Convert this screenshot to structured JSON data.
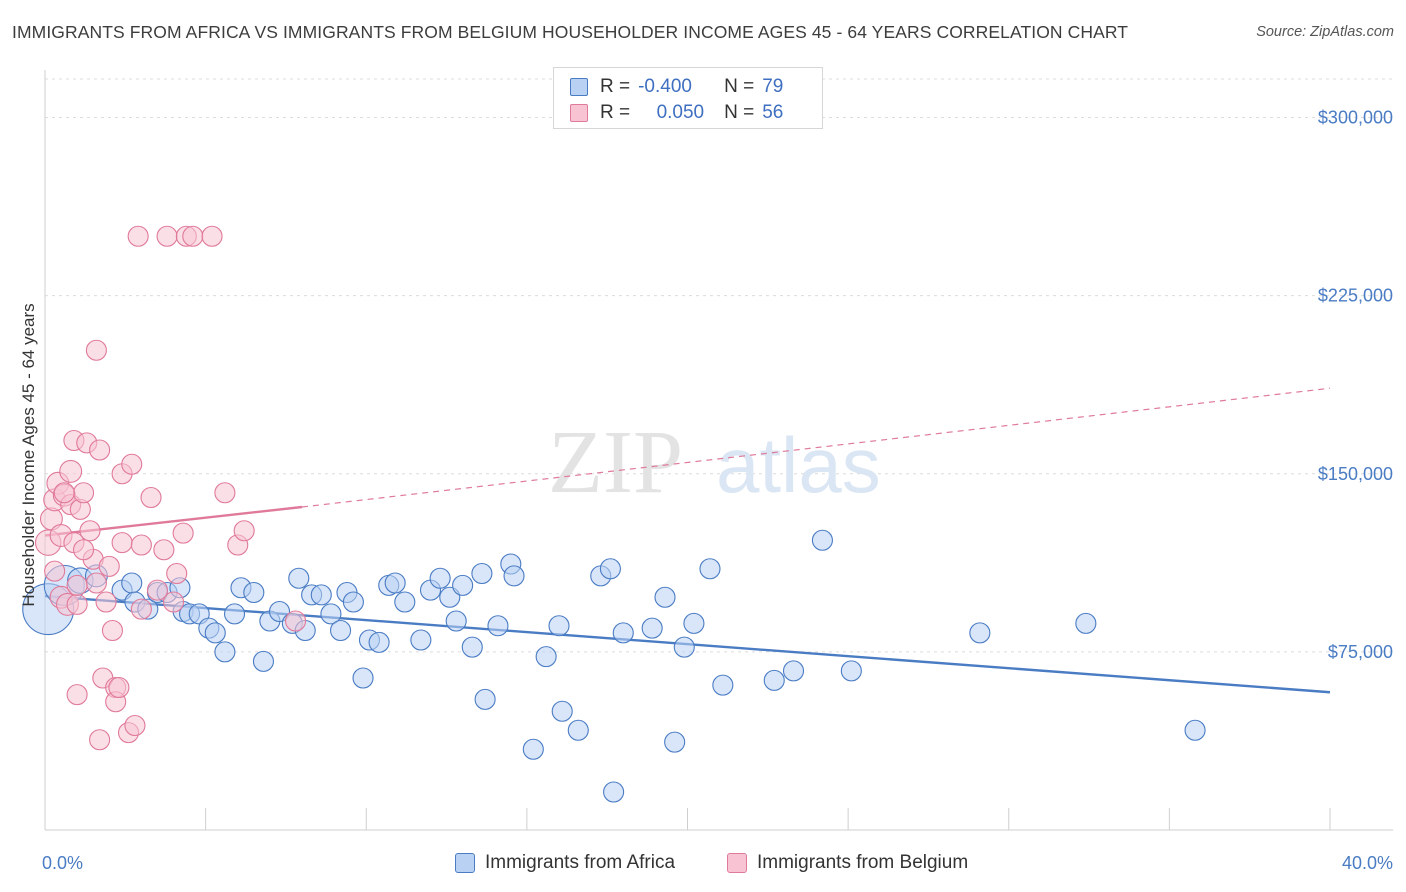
{
  "header": {
    "title": "IMMIGRANTS FROM AFRICA VS IMMIGRANTS FROM BELGIUM HOUSEHOLDER INCOME AGES 45 - 64 YEARS CORRELATION CHART",
    "source": "Source: ZipAtlas.com"
  },
  "watermark": {
    "zip": "ZIP",
    "atlas": "atlas"
  },
  "stats": {
    "r_label": "R =",
    "n_label": "N =",
    "rows": [
      {
        "r": "-0.400",
        "n": "79",
        "color": "#4a7cc4",
        "fill": "#b9d2f4"
      },
      {
        "r": "0.050",
        "n": "56",
        "color": "#e07a9a",
        "fill": "#f8c4d4"
      }
    ]
  },
  "legend": {
    "items": [
      {
        "label": "Immigrants from Africa",
        "color": "#4a7cc4",
        "fill": "#b9d2f4"
      },
      {
        "label": "Immigrants from Belgium",
        "color": "#e07a9a",
        "fill": "#f8c4d4"
      }
    ]
  },
  "chart_data": {
    "type": "scatter",
    "title": "IMMIGRANTS FROM AFRICA VS IMMIGRANTS FROM BELGIUM HOUSEHOLDER INCOME AGES 45 - 64 YEARS CORRELATION CHART",
    "xlabel": "",
    "ylabel": "Householder Income Ages 45 - 64 years",
    "xlim": [
      0,
      40
    ],
    "ylim": [
      0,
      320000
    ],
    "x_tick_labels": [
      {
        "value": 0,
        "label": "0.0%"
      },
      {
        "value": 40,
        "label": "40.0%"
      }
    ],
    "y_tick_labels": [
      {
        "value": 75000,
        "label": "$75,000"
      },
      {
        "value": 150000,
        "label": "$150,000"
      },
      {
        "value": 225000,
        "label": "$225,000"
      },
      {
        "value": 300000,
        "label": "$300,000"
      }
    ],
    "grid": true,
    "legend_position": "bottom",
    "series": [
      {
        "name": "Immigrants from Africa",
        "color": "#4a7cc4",
        "fill": "#b9d2f4",
        "trend": {
          "x": [
            0,
            40
          ],
          "y": [
            98500,
            58000
          ],
          "dashed_extension": false
        },
        "points": [
          [
            0.1,
            93000,
            28
          ],
          [
            0.6,
            103000,
            22
          ],
          [
            1.1,
            105000,
            14
          ],
          [
            1.6,
            107000,
            12
          ],
          [
            2.4,
            101000,
            11
          ],
          [
            2.7,
            104000,
            11
          ],
          [
            2.8,
            96000,
            11
          ],
          [
            3.2,
            93000,
            11
          ],
          [
            3.5,
            100000,
            11
          ],
          [
            3.8,
            100000,
            11
          ],
          [
            4.2,
            102000,
            11
          ],
          [
            4.3,
            92000,
            11
          ],
          [
            4.5,
            91000,
            11
          ],
          [
            4.8,
            91000,
            11
          ],
          [
            5.1,
            85000,
            11
          ],
          [
            5.3,
            83000,
            11
          ],
          [
            5.6,
            75000,
            11
          ],
          [
            5.9,
            91000,
            11
          ],
          [
            6.1,
            102000,
            11
          ],
          [
            6.5,
            100000,
            11
          ],
          [
            6.8,
            71000,
            11
          ],
          [
            7.0,
            88000,
            11
          ],
          [
            7.3,
            92000,
            11
          ],
          [
            7.7,
            87000,
            11
          ],
          [
            7.9,
            106000,
            11
          ],
          [
            8.1,
            84000,
            11
          ],
          [
            8.3,
            99000,
            11
          ],
          [
            8.6,
            99000,
            11
          ],
          [
            8.9,
            91000,
            11
          ],
          [
            9.2,
            84000,
            11
          ],
          [
            9.4,
            100000,
            11
          ],
          [
            9.6,
            96000,
            11
          ],
          [
            9.9,
            64000,
            11
          ],
          [
            10.1,
            80000,
            11
          ],
          [
            10.4,
            79000,
            11
          ],
          [
            10.7,
            103000,
            11
          ],
          [
            10.9,
            104000,
            11
          ],
          [
            11.2,
            96000,
            11
          ],
          [
            11.7,
            80000,
            11
          ],
          [
            12.0,
            101000,
            11
          ],
          [
            12.3,
            106000,
            11
          ],
          [
            12.6,
            98000,
            11
          ],
          [
            12.8,
            88000,
            11
          ],
          [
            13.0,
            103000,
            11
          ],
          [
            13.3,
            77000,
            11
          ],
          [
            13.6,
            108000,
            11
          ],
          [
            13.7,
            55000,
            11
          ],
          [
            14.1,
            86000,
            11
          ],
          [
            14.5,
            112000,
            11
          ],
          [
            14.6,
            107000,
            11
          ],
          [
            15.2,
            34000,
            11
          ],
          [
            15.6,
            73000,
            11
          ],
          [
            16.0,
            86000,
            11
          ],
          [
            16.1,
            50000,
            11
          ],
          [
            16.6,
            42000,
            11
          ],
          [
            17.3,
            107000,
            11
          ],
          [
            17.6,
            110000,
            11
          ],
          [
            17.7,
            16000,
            11
          ],
          [
            18.0,
            83000,
            11
          ],
          [
            18.9,
            85000,
            11
          ],
          [
            19.3,
            98000,
            11
          ],
          [
            19.6,
            37000,
            11
          ],
          [
            19.9,
            77000,
            11
          ],
          [
            20.2,
            87000,
            11
          ],
          [
            20.7,
            110000,
            11
          ],
          [
            21.1,
            61000,
            11
          ],
          [
            22.7,
            63000,
            11
          ],
          [
            23.3,
            67000,
            11
          ],
          [
            24.2,
            122000,
            11
          ],
          [
            25.1,
            67000,
            11
          ],
          [
            29.1,
            83000,
            11
          ],
          [
            32.4,
            87000,
            11
          ],
          [
            35.8,
            42000,
            11
          ]
        ]
      },
      {
        "name": "Immigrants from Belgium",
        "color": "#e07a9a",
        "fill": "#f8c4d4",
        "trend": {
          "x": [
            0,
            8.0,
            40
          ],
          "y": [
            124000,
            136000,
            186000
          ],
          "dashed_extension": true
        },
        "points": [
          [
            0.1,
            121000,
            14
          ],
          [
            0.2,
            131000,
            12
          ],
          [
            0.3,
            139000,
            12
          ],
          [
            0.4,
            146000,
            12
          ],
          [
            0.5,
            124000,
            12
          ],
          [
            0.5,
            98000,
            12
          ],
          [
            0.6,
            141000,
            12
          ],
          [
            0.7,
            95000,
            12
          ],
          [
            0.8,
            151000,
            12
          ],
          [
            0.8,
            137000,
            11
          ],
          [
            0.9,
            121000,
            11
          ],
          [
            0.9,
            164000,
            11
          ],
          [
            1.0,
            57000,
            11
          ],
          [
            1.0,
            95000,
            11
          ],
          [
            1.1,
            135000,
            11
          ],
          [
            1.2,
            142000,
            11
          ],
          [
            1.3,
            163000,
            11
          ],
          [
            1.4,
            126000,
            11
          ],
          [
            1.5,
            114000,
            11
          ],
          [
            1.6,
            104000,
            11
          ],
          [
            1.6,
            202000,
            11
          ],
          [
            1.7,
            160000,
            11
          ],
          [
            1.7,
            38000,
            11
          ],
          [
            1.8,
            64000,
            11
          ],
          [
            1.9,
            96000,
            11
          ],
          [
            2.0,
            111000,
            11
          ],
          [
            2.1,
            84000,
            11
          ],
          [
            2.2,
            60000,
            11
          ],
          [
            2.2,
            54000,
            11
          ],
          [
            2.4,
            150000,
            11
          ],
          [
            2.4,
            121000,
            11
          ],
          [
            2.6,
            41000,
            11
          ],
          [
            2.7,
            154000,
            11
          ],
          [
            2.8,
            44000,
            11
          ],
          [
            3.0,
            120000,
            11
          ],
          [
            3.0,
            93000,
            11
          ],
          [
            3.3,
            140000,
            11
          ],
          [
            3.5,
            101000,
            11
          ],
          [
            3.7,
            118000,
            11
          ],
          [
            3.8,
            250000,
            11
          ],
          [
            4.0,
            96000,
            11
          ],
          [
            4.1,
            108000,
            11
          ],
          [
            4.3,
            125000,
            11
          ],
          [
            4.4,
            250000,
            11
          ],
          [
            4.6,
            250000,
            11
          ],
          [
            5.2,
            250000,
            11
          ],
          [
            5.6,
            142000,
            11
          ],
          [
            6.0,
            120000,
            11
          ],
          [
            6.2,
            126000,
            11
          ],
          [
            7.8,
            88000,
            11
          ],
          [
            0.3,
            109000,
            11
          ],
          [
            1.2,
            118000,
            11
          ],
          [
            2.9,
            250000,
            11
          ],
          [
            0.6,
            142000,
            11
          ],
          [
            1.0,
            103000,
            11
          ],
          [
            2.3,
            60000,
            11
          ]
        ]
      }
    ]
  }
}
